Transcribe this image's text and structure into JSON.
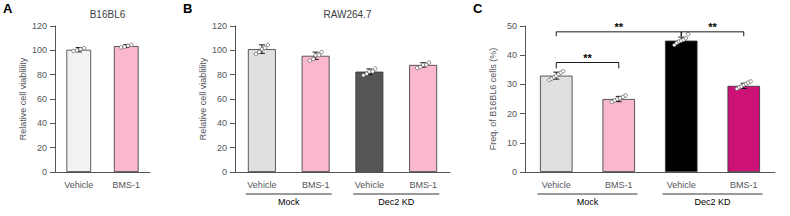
{
  "chart_data": [
    {
      "type": "bar",
      "panel_label": "A",
      "title": "B16BL6",
      "ylabel": "Relative cell viablility",
      "categories": [
        "Vehicle",
        "BMS-1"
      ],
      "values": [
        100.5,
        103.5
      ],
      "errors": [
        1.8,
        1.2
      ],
      "dots": [
        [
          99.5,
          100.0,
          101.0,
          101.8
        ],
        [
          102.5,
          103.0,
          103.8,
          104.5
        ]
      ],
      "colors": [
        "#f2f2f2",
        "#f9b8cc"
      ],
      "ylim": [
        0,
        120
      ],
      "yticks": [
        0,
        20,
        40,
        60,
        80,
        100,
        120
      ],
      "grid": false
    },
    {
      "type": "bar",
      "panel_label": "B",
      "title": "RAW264.7",
      "ylabel": "Relative cell viablility",
      "categories": [
        "Vehicle",
        "BMS-1",
        "Vehicle",
        "BMS-1"
      ],
      "values": [
        101.0,
        95.5,
        82.5,
        88.0
      ],
      "errors": [
        3.5,
        3.0,
        2.2,
        1.8
      ],
      "dots": [
        [
          97.0,
          99.5,
          101.0,
          102.5,
          104.5
        ],
        [
          91.5,
          94.0,
          96.0,
          97.0,
          98.5
        ],
        [
          79.5,
          81.5,
          82.5,
          83.5,
          85.0
        ],
        [
          85.5,
          87.0,
          88.0,
          88.5,
          90.0
        ]
      ],
      "colors": [
        "#e0e0e0",
        "#f9b8cc",
        "#555555",
        "#f9b8cc"
      ],
      "groups": [
        {
          "label": "Mock",
          "start": 0,
          "end": 1
        },
        {
          "label": "Dec2 KD",
          "start": 2,
          "end": 3
        }
      ],
      "ylim": [
        0,
        120
      ],
      "yticks": [
        0,
        20,
        40,
        60,
        80,
        100,
        120
      ],
      "grid": false
    },
    {
      "type": "bar",
      "panel_label": "C",
      "ylabel": "Freq. of B16BL6 cells (%)",
      "categories": [
        "Vehicle",
        "BMS-1",
        "Vehicle",
        "BMS-1"
      ],
      "values": [
        33.0,
        25.0,
        45.0,
        29.5
      ],
      "errors": [
        1.2,
        0.9,
        1.2,
        0.9
      ],
      "dots": [
        [
          31.5,
          32.0,
          32.5,
          33.0,
          33.5,
          34.0,
          34.5
        ],
        [
          24.0,
          24.5,
          25.0,
          25.3,
          25.7,
          26.2
        ],
        [
          43.5,
          44.2,
          44.7,
          45.0,
          45.3,
          45.8,
          47.2
        ],
        [
          28.5,
          29.0,
          29.3,
          29.8,
          30.2,
          30.6,
          31.0
        ]
      ],
      "colors": [
        "#e0e0e0",
        "#f9b8cc",
        "#000000",
        "#cc1177"
      ],
      "groups": [
        {
          "label": "Mock",
          "start": 0,
          "end": 1
        },
        {
          "label": "Dec2 KD",
          "start": 2,
          "end": 3
        }
      ],
      "brackets": [
        {
          "from": 0,
          "to": 1,
          "y": 37.5,
          "y_drop": 35.5,
          "label": "**"
        },
        {
          "from": 0,
          "to": 2,
          "y": 48.0,
          "y_drop": 46.5,
          "label": "**"
        },
        {
          "from": 2,
          "to": 3,
          "y": 48.0,
          "y_drop": 46.5,
          "label": "**"
        }
      ],
      "ylim": [
        0,
        50
      ],
      "yticks": [
        0,
        10,
        20,
        30,
        40,
        50
      ],
      "grid": false
    }
  ]
}
